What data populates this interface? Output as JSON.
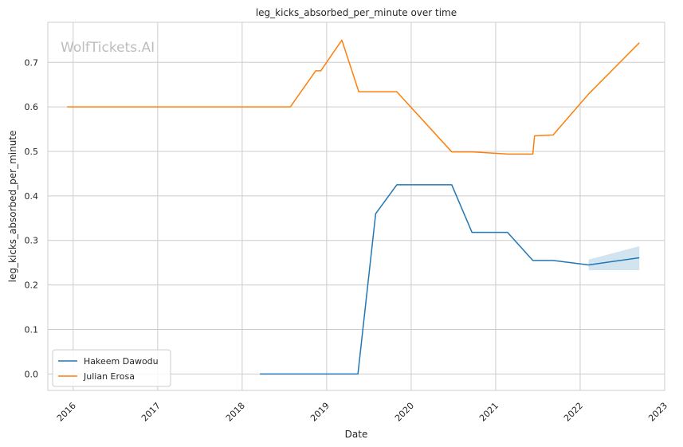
{
  "chart_data": {
    "type": "line",
    "title": "leg_kicks_absorbed_per_minute over time",
    "xlabel": "Date",
    "ylabel": "leg_kicks_absorbed_per_minute",
    "watermark": "WolfTickets.AI",
    "xlim": [
      2015.7,
      2023.0
    ],
    "ylim": [
      -0.037,
      0.79
    ],
    "x_ticks": [
      2016,
      2017,
      2018,
      2019,
      2020,
      2021,
      2022,
      2023
    ],
    "x_tick_labels": [
      "2016",
      "2017",
      "2018",
      "2019",
      "2020",
      "2021",
      "2022",
      "2023"
    ],
    "y_ticks": [
      0.0,
      0.1,
      0.2,
      0.3,
      0.4,
      0.5,
      0.6,
      0.7
    ],
    "y_tick_labels": [
      "0.0",
      "0.1",
      "0.2",
      "0.3",
      "0.4",
      "0.5",
      "0.6",
      "0.7"
    ],
    "grid": true,
    "legend_position": "lower-left",
    "series": [
      {
        "name": "Hakeem Dawodu",
        "color": "#1f77b4",
        "x": [
          2018.21,
          2019.37,
          2019.58,
          2019.83,
          2020.48,
          2020.72,
          2021.14,
          2021.44,
          2021.68,
          2022.1,
          2022.7
        ],
        "y": [
          0.0,
          0.0,
          0.36,
          0.425,
          0.425,
          0.318,
          0.318,
          0.255,
          0.255,
          0.245,
          0.261
        ],
        "band": {
          "x": [
            2022.1,
            2022.7
          ],
          "lower": [
            0.233,
            0.233
          ],
          "upper": [
            0.257,
            0.287
          ]
        }
      },
      {
        "name": "Julian Erosa",
        "color": "#ff7f0e",
        "x": [
          2015.93,
          2018.57,
          2018.87,
          2018.93,
          2019.18,
          2019.38,
          2019.83,
          2020.48,
          2020.72,
          2021.14,
          2021.44,
          2021.46,
          2021.68,
          2022.1,
          2022.7
        ],
        "y": [
          0.6,
          0.6,
          0.681,
          0.681,
          0.75,
          0.634,
          0.634,
          0.499,
          0.499,
          0.494,
          0.494,
          0.535,
          0.537,
          0.629,
          0.744
        ]
      }
    ]
  }
}
